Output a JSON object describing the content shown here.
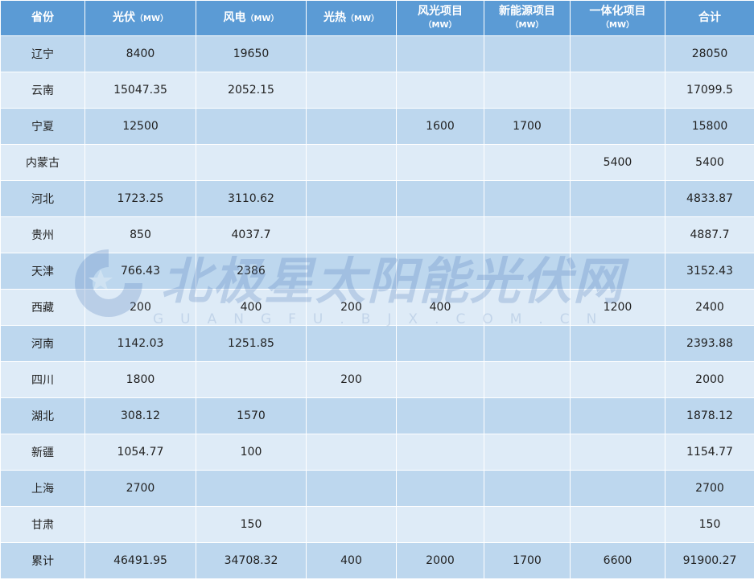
{
  "colors": {
    "header": "#5b9bd5",
    "row_odd": "#bdd7ee",
    "row_even": "#deebf7"
  },
  "header": [
    {
      "label": "省份",
      "unit": ""
    },
    {
      "label": "光伏",
      "unit": "（MW）"
    },
    {
      "label": "风电",
      "unit": "（MW）"
    },
    {
      "label": "光热",
      "unit": "（MW）"
    },
    {
      "label": "风光项目",
      "unit": "（MW）"
    },
    {
      "label": "新能源项目",
      "unit": "（MW）"
    },
    {
      "label": "一体化项目",
      "unit": "（MW）"
    },
    {
      "label": "合计",
      "unit": ""
    }
  ],
  "rows": [
    [
      "辽宁",
      "8400",
      "19650",
      "",
      "",
      "",
      "",
      "28050"
    ],
    [
      "云南",
      "15047.35",
      "2052.15",
      "",
      "",
      "",
      "",
      "17099.5"
    ],
    [
      "宁夏",
      "12500",
      "",
      "",
      "1600",
      "1700",
      "",
      "15800"
    ],
    [
      "内蒙古",
      "",
      "",
      "",
      "",
      "",
      "5400",
      "5400"
    ],
    [
      "河北",
      "1723.25",
      "3110.62",
      "",
      "",
      "",
      "",
      "4833.87"
    ],
    [
      "贵州",
      "850",
      "4037.7",
      "",
      "",
      "",
      "",
      "4887.7"
    ],
    [
      "天津",
      "766.43",
      "2386",
      "",
      "",
      "",
      "",
      "3152.43"
    ],
    [
      "西藏",
      "200",
      "400",
      "200",
      "400",
      "",
      "1200",
      "2400"
    ],
    [
      "河南",
      "1142.03",
      "1251.85",
      "",
      "",
      "",
      "",
      "2393.88"
    ],
    [
      "四川",
      "1800",
      "",
      "200",
      "",
      "",
      "",
      "2000"
    ],
    [
      "湖北",
      "308.12",
      "1570",
      "",
      "",
      "",
      "",
      "1878.12"
    ],
    [
      "新疆",
      "1054.77",
      "100",
      "",
      "",
      "",
      "",
      "1154.77"
    ],
    [
      "上海",
      "2700",
      "",
      "",
      "",
      "",
      "",
      "2700"
    ],
    [
      "甘肃",
      "",
      "150",
      "",
      "",
      "",
      "",
      "150"
    ],
    [
      "累计",
      "46491.95",
      "34708.32",
      "400",
      "2000",
      "1700",
      "6600",
      "91900.27"
    ]
  ],
  "watermark": {
    "title": "北极星太阳能光伏网",
    "subtitle": "GUANGFU.BJX.COM.CN"
  }
}
